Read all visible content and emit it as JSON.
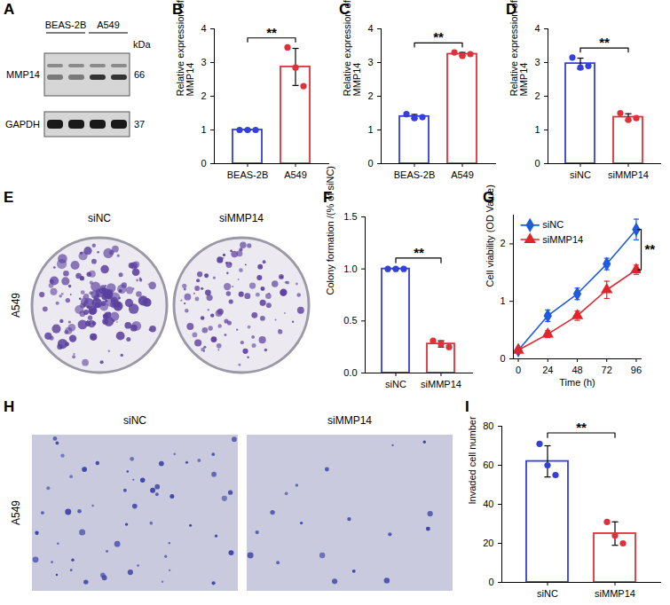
{
  "chart_data": [
    {
      "panel": "B",
      "type": "bar",
      "categories": [
        "BEAS-2B",
        "A549"
      ],
      "values": [
        1.0,
        2.87
      ],
      "error": [
        0.02,
        0.55
      ],
      "points": [
        [
          1.0,
          1.0,
          1.0
        ],
        [
          3.45,
          2.85,
          2.3
        ]
      ],
      "colors": [
        "#3340d9",
        "#e0313a"
      ],
      "y_label": "Relative expression of MMP14",
      "ylim": [
        0,
        4
      ],
      "yticks": [
        0,
        1,
        2,
        3,
        4
      ],
      "annotations": [
        {
          "text": "**"
        }
      ]
    },
    {
      "panel": "C",
      "type": "bar",
      "categories": [
        "BEAS-2B",
        "A549"
      ],
      "values": [
        1.4,
        3.25
      ],
      "error": [
        0.06,
        0.05
      ],
      "points": [
        [
          1.47,
          1.35,
          1.38
        ],
        [
          3.3,
          3.2,
          3.25
        ]
      ],
      "colors": [
        "#3340d9",
        "#e0313a"
      ],
      "y_label": "Relative expression of MMP14",
      "ylim": [
        0,
        4
      ],
      "yticks": [
        0,
        1,
        2,
        3,
        4
      ],
      "annotations": [
        {
          "text": "**"
        }
      ]
    },
    {
      "panel": "D",
      "type": "bar",
      "categories": [
        "siNC",
        "siMMP14"
      ],
      "values": [
        2.97,
        1.38
      ],
      "error": [
        0.16,
        0.1
      ],
      "points": [
        [
          3.15,
          2.85,
          2.9
        ],
        [
          1.5,
          1.3,
          1.35
        ]
      ],
      "colors": [
        "#3340d9",
        "#e0313a"
      ],
      "y_label": "Relative expression of MMP14",
      "ylim": [
        0,
        4
      ],
      "yticks": [
        0,
        1,
        2,
        3,
        4
      ],
      "annotations": [
        {
          "text": "**"
        }
      ]
    },
    {
      "panel": "F",
      "type": "bar",
      "categories": [
        "siNC",
        "siMMP14"
      ],
      "values": [
        1.0,
        0.28
      ],
      "error": [
        0.0,
        0.03
      ],
      "points": [
        [
          1.0,
          1.0,
          1.0
        ],
        [
          0.31,
          0.28,
          0.25
        ]
      ],
      "colors": [
        "#3340d9",
        "#e0313a"
      ],
      "y_label": "Colony formation /(% of siNC)",
      "ylim": [
        0,
        1.5
      ],
      "yticks": [
        {
          "value": 0,
          "label": "0.0"
        },
        0.5,
        {
          "value": 1,
          "label": "1.0"
        },
        1.5
      ],
      "annotations": [
        {
          "text": "**"
        }
      ]
    },
    {
      "panel": "G",
      "type": "line",
      "x": [
        0,
        24,
        48,
        72,
        96
      ],
      "series": [
        {
          "name": "siNC",
          "color": "#1f5bde",
          "marker": "diamond",
          "values": [
            0.15,
            0.75,
            1.13,
            1.65,
            2.25
          ],
          "error": [
            0.03,
            0.1,
            0.1,
            0.1,
            0.18
          ]
        },
        {
          "name": "siMMP14",
          "color": "#e3242b",
          "marker": "triangle",
          "values": [
            0.15,
            0.43,
            0.75,
            1.2,
            1.55
          ],
          "error": [
            0.03,
            0.06,
            0.08,
            0.15,
            0.08
          ]
        }
      ],
      "xlim": [
        -4,
        100
      ],
      "xticks": [
        0,
        24,
        48,
        72,
        96
      ],
      "ylim": [
        0,
        2.5
      ],
      "yticks": [
        0,
        1,
        2
      ],
      "x_label": "Time (h)",
      "y_label": "Cell viability (OD Value)",
      "legend": "top-left",
      "annotations": [
        {
          "text": "**"
        }
      ]
    },
    {
      "panel": "I",
      "type": "bar",
      "categories": [
        "siNC",
        "siMMP14"
      ],
      "values": [
        62,
        25
      ],
      "error": [
        8,
        6
      ],
      "points": [
        [
          71,
          60,
          55
        ],
        [
          31,
          24,
          20
        ]
      ],
      "colors": [
        "#3340d9",
        "#e0313a"
      ],
      "y_label": "Invaded cell number",
      "ylim": [
        0,
        80
      ],
      "yticks": [
        0,
        20,
        40,
        60,
        80
      ],
      "annotations": [
        {
          "text": "**"
        }
      ]
    }
  ],
  "blot": {
    "panel": "A",
    "groups": [
      "BEAS-2B",
      "A549"
    ],
    "unit": "kDa",
    "rows": [
      {
        "label": "MMP14",
        "kDa": 66
      },
      {
        "label": "GAPDH",
        "kDa": 37
      }
    ]
  },
  "colony": {
    "panel": "E",
    "cell_line": "A549",
    "conditions": [
      "siNC",
      "siMMP14"
    ]
  },
  "invasion": {
    "panel": "H",
    "cell_line": "A549",
    "conditions": [
      "siNC",
      "siMMP14"
    ]
  }
}
